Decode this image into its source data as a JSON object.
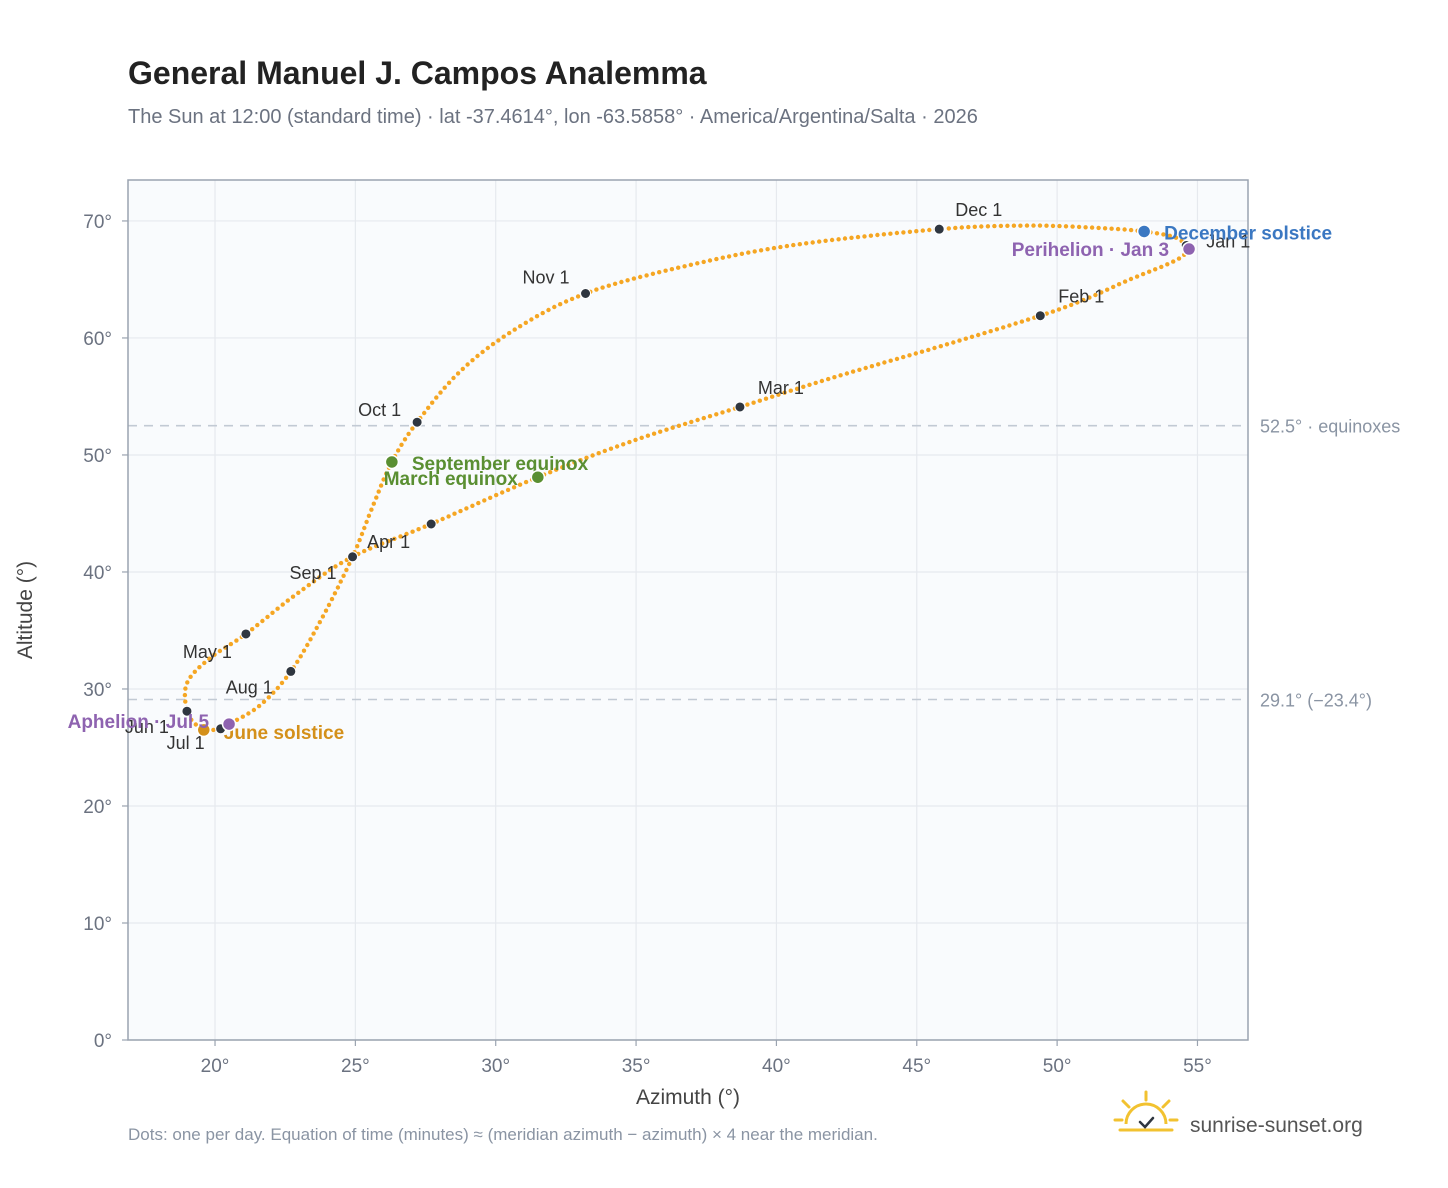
{
  "header": {
    "title": "General Manuel J. Campos Analemma",
    "subtitle": "The Sun at 12:00 (standard time) · lat -37.4614°, lon -63.5858° · America/Argentina/Salta · 2026"
  },
  "footer": {
    "note": "Dots: one per day. Equation of time (minutes) ≈ (meridian azimuth − azimuth) × 4 near the meridian.",
    "brand": "sunrise-sunset.org"
  },
  "colors": {
    "curve": "#f5a623",
    "month_dot": "#2f3640",
    "solstice_december": "#3b78c2",
    "solstice_june": "#d4901a",
    "equinox": "#5a8f32",
    "aphelion_perihelion": "#8e63b0",
    "refline": "#c2cad4",
    "grid": "#e6e9ee",
    "plot_bg": "#f9fbfd",
    "frame": "#9aa3b0"
  },
  "chart_data": {
    "type": "scatter",
    "xlabel": "Azimuth (°)",
    "ylabel": "Altitude (°)",
    "xlim": [
      16.9,
      56.8
    ],
    "ylim": [
      0,
      73.5
    ],
    "x_ticks": [
      20,
      25,
      30,
      35,
      40,
      45,
      50,
      55
    ],
    "x_tick_labels": [
      "20°",
      "25°",
      "30°",
      "35°",
      "40°",
      "45°",
      "50°",
      "55°"
    ],
    "y_ticks": [
      0,
      10,
      20,
      30,
      40,
      50,
      60,
      70
    ],
    "y_tick_labels": [
      "0°",
      "10°",
      "20°",
      "30°",
      "40°",
      "50°",
      "60°",
      "70°"
    ],
    "grid": true,
    "reference_lines": [
      {
        "y": 52.5,
        "label": "52.5° · equinoxes"
      },
      {
        "y": 29.1,
        "label": "29.1° (−23.4°)"
      }
    ],
    "month_markers": [
      {
        "label": "Jan 1",
        "x": 54.6,
        "y": 67.9
      },
      {
        "label": "Feb 1",
        "x": 49.4,
        "y": 61.9
      },
      {
        "label": "Mar 1",
        "x": 38.7,
        "y": 54.1
      },
      {
        "label": "Apr 1",
        "x": 27.7,
        "y": 44.1
      },
      {
        "label": "May 1",
        "x": 21.1,
        "y": 34.7
      },
      {
        "label": "Jun 1",
        "x": 19.0,
        "y": 28.1
      },
      {
        "label": "Jul 1",
        "x": 20.2,
        "y": 26.6
      },
      {
        "label": "Aug 1",
        "x": 22.7,
        "y": 31.5
      },
      {
        "label": "Sep 1",
        "x": 24.9,
        "y": 41.3
      },
      {
        "label": "Oct 1",
        "x": 27.2,
        "y": 52.8
      },
      {
        "label": "Nov 1",
        "x": 33.2,
        "y": 63.8
      },
      {
        "label": "Dec 1",
        "x": 45.8,
        "y": 69.3
      }
    ],
    "events": [
      {
        "label": "December solstice",
        "x": 53.1,
        "y": 69.1,
        "kind": "solstice_december"
      },
      {
        "label": "Perihelion · Jan 3",
        "x": 54.7,
        "y": 67.6,
        "kind": "aphelion_perihelion"
      },
      {
        "label": "September equinox",
        "x": 26.3,
        "y": 49.4,
        "kind": "equinox"
      },
      {
        "label": "March equinox",
        "x": 31.5,
        "y": 48.1,
        "kind": "equinox"
      },
      {
        "label": "June solstice",
        "x": 19.6,
        "y": 26.5,
        "kind": "solstice_june"
      },
      {
        "label": "Aphelion · Jul 5",
        "x": 20.5,
        "y": 27.0,
        "kind": "aphelion_perihelion"
      }
    ],
    "curve_path": [
      {
        "x": 54.6,
        "y": 67.9
      },
      {
        "x": 54.7,
        "y": 67.6
      },
      {
        "x": 54.2,
        "y": 66.6
      },
      {
        "x": 52.5,
        "y": 64.9
      },
      {
        "x": 51.0,
        "y": 63.3
      },
      {
        "x": 49.4,
        "y": 61.9
      },
      {
        "x": 46.0,
        "y": 59.4
      },
      {
        "x": 42.0,
        "y": 56.6
      },
      {
        "x": 38.7,
        "y": 54.1
      },
      {
        "x": 35.0,
        "y": 51.3
      },
      {
        "x": 31.5,
        "y": 48.1
      },
      {
        "x": 27.7,
        "y": 44.1
      },
      {
        "x": 24.9,
        "y": 41.3
      },
      {
        "x": 22.9,
        "y": 38.1
      },
      {
        "x": 21.1,
        "y": 34.7
      },
      {
        "x": 19.8,
        "y": 32.6
      },
      {
        "x": 19.0,
        "y": 30.5
      },
      {
        "x": 19.0,
        "y": 28.1
      },
      {
        "x": 19.3,
        "y": 27.0
      },
      {
        "x": 19.6,
        "y": 26.5
      },
      {
        "x": 20.2,
        "y": 26.6
      },
      {
        "x": 20.5,
        "y": 27.0
      },
      {
        "x": 21.6,
        "y": 28.6
      },
      {
        "x": 22.7,
        "y": 31.5
      },
      {
        "x": 23.8,
        "y": 36.0
      },
      {
        "x": 24.9,
        "y": 41.3
      },
      {
        "x": 25.6,
        "y": 45.5
      },
      {
        "x": 26.3,
        "y": 49.4
      },
      {
        "x": 27.2,
        "y": 52.8
      },
      {
        "x": 28.8,
        "y": 57.3
      },
      {
        "x": 30.8,
        "y": 60.9
      },
      {
        "x": 33.2,
        "y": 63.8
      },
      {
        "x": 36.5,
        "y": 66.0
      },
      {
        "x": 40.5,
        "y": 67.9
      },
      {
        "x": 45.8,
        "y": 69.3
      },
      {
        "x": 49.0,
        "y": 69.6
      },
      {
        "x": 51.5,
        "y": 69.4
      },
      {
        "x": 53.1,
        "y": 69.1
      },
      {
        "x": 54.2,
        "y": 68.6
      },
      {
        "x": 54.6,
        "y": 67.9
      }
    ]
  }
}
